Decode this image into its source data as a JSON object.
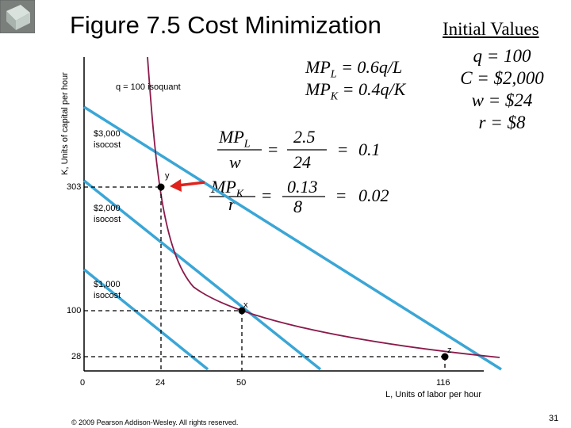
{
  "title": "Figure 7.5 Cost Minimization",
  "initial_values": {
    "heading": "Initial Values",
    "lines": [
      "q = 100",
      "C = $2,000",
      "w = $24",
      "r = $8"
    ]
  },
  "marginal_products": {
    "mpl": {
      "lhs": "MP",
      "sub": "L",
      "rhs": " = 0.6q/L"
    },
    "mpk": {
      "lhs": "MP",
      "sub": "K",
      "rhs": " = 0.4q/K"
    }
  },
  "ratios": {
    "labor": {
      "num": "MP",
      "num_sub": "L",
      "den": "w",
      "eq1": "=",
      "mid_num": "2.5",
      "mid_den": "24",
      "eq2": "=",
      "result": "0.1"
    },
    "capital": {
      "num": "MP",
      "num_sub": "K",
      "den": "r",
      "eq1": "=",
      "mid_num": "0.13",
      "mid_den": "8",
      "eq2": "=",
      "result": "0.02"
    }
  },
  "axes": {
    "y_label": "K, Units of capital per hour",
    "x_label": "L, Units of labor per hour",
    "y_ticks": [
      "303",
      "100",
      "28"
    ],
    "x_ticks": [
      "0",
      "24",
      "50",
      "116"
    ]
  },
  "curve_labels": {
    "isoquant": "q = 100 isoquant",
    "iso3000": "$3,000 isocost",
    "iso2000": "$2,000 isocost",
    "iso1000": "$1,000 isocost"
  },
  "points": {
    "x": "x",
    "y": "y",
    "z": "z"
  },
  "footer": "© 2009 Pearson Addison-Wesley. All rights reserved.",
  "page_number": "31",
  "colors": {
    "isocost": "#3aa6d6",
    "isoquant": "#8a1a4a",
    "arrow": "#e0221c"
  },
  "logo_icon": "glass-cube-icon"
}
